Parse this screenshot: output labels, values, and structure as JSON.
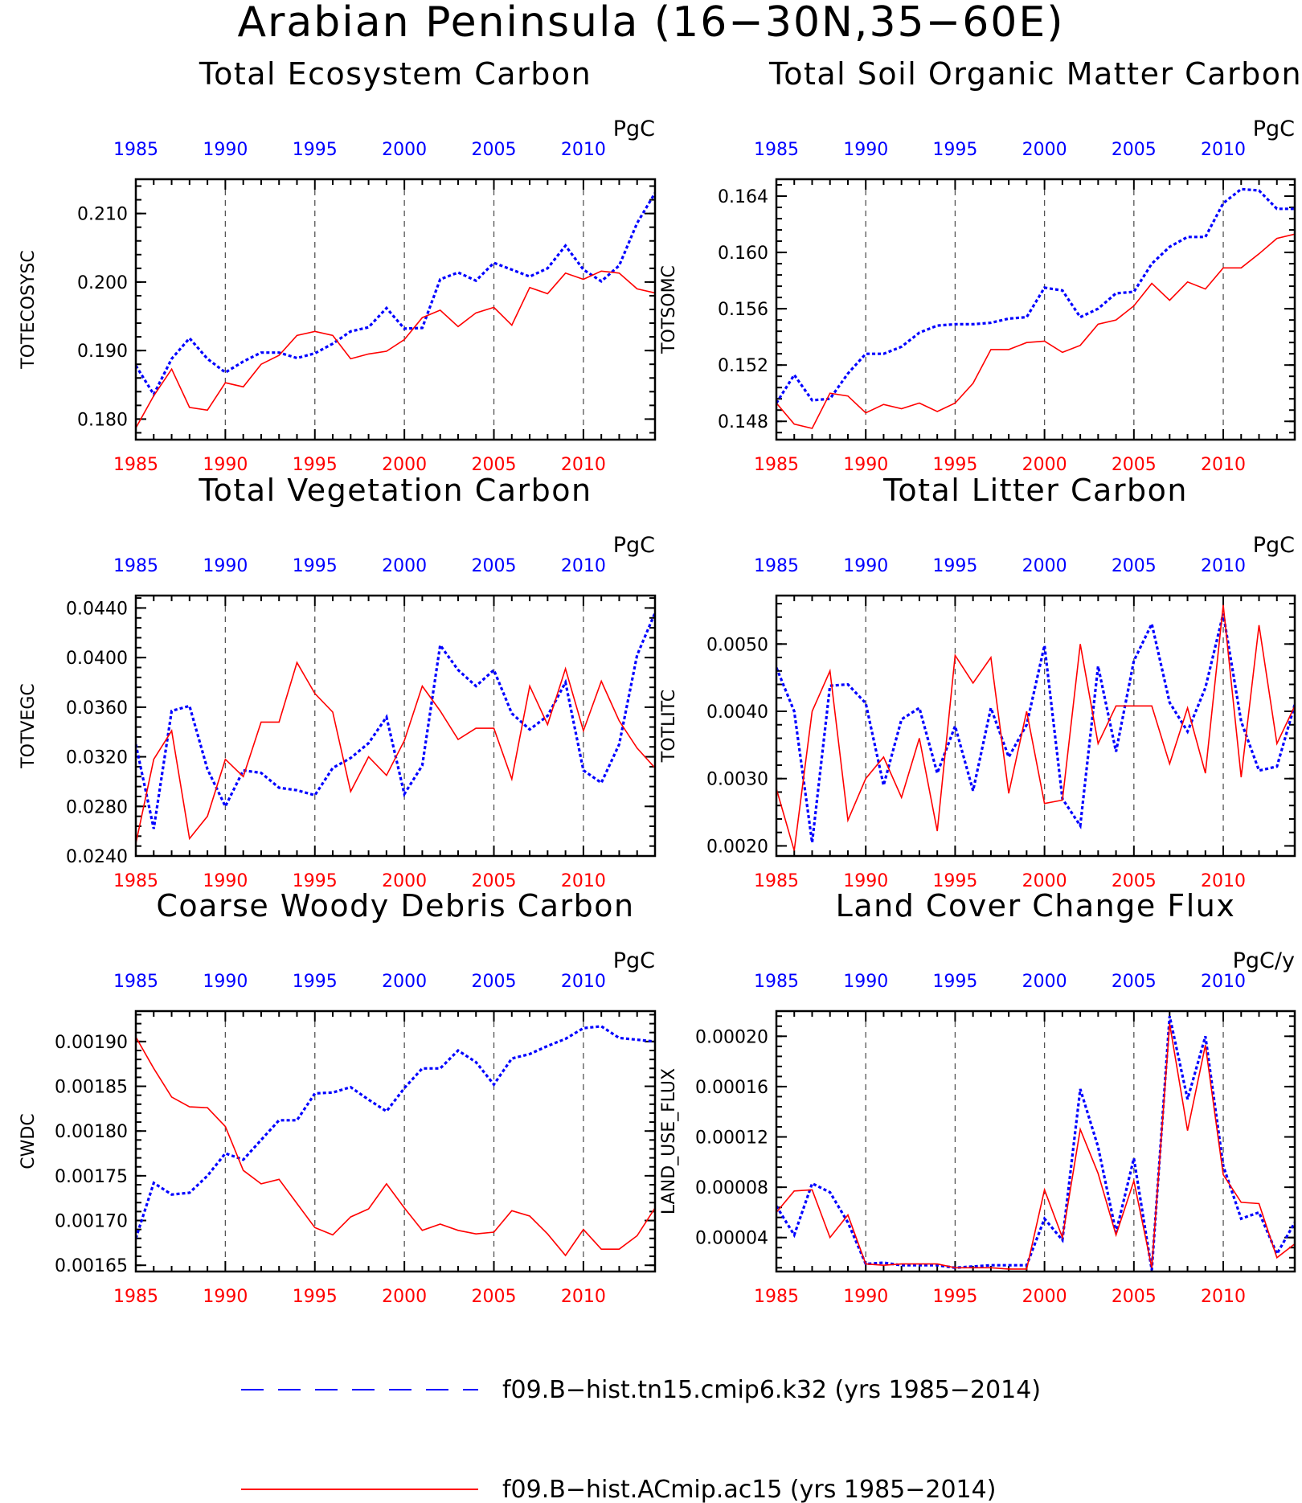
{
  "figure": {
    "title": "Arabian Peninsula (16−30N,35−60E)"
  },
  "colors": {
    "case1": "#0000ff",
    "case2": "#ff0000",
    "axis": "#000000",
    "grid": "#555555"
  },
  "legend": {
    "items": [
      {
        "label": "f09.B−hist.tn15.cmip6.k32 (yrs 1985−2014)",
        "color": "#0000ff",
        "style": "dashed"
      },
      {
        "label": "f09.B−hist.ACmip.ac15 (yrs 1985−2014)",
        "color": "#ff0000",
        "style": "solid"
      }
    ]
  },
  "chart_data": [
    {
      "type": "line",
      "title": "Total Ecosystem Carbon",
      "ylabel": "TOTECOSYSC",
      "units": "PgC",
      "x_top_color": "blue",
      "x_bottom_color": "red",
      "xlim": [
        1985,
        2014
      ],
      "xticks": [
        1985,
        1990,
        1995,
        2000,
        2005,
        2010
      ],
      "gridlines_x": [
        1990,
        1995,
        2000,
        2005,
        2010
      ],
      "ylim": [
        0.177,
        0.215
      ],
      "yticks": [
        "0.180",
        "0.190",
        "0.200",
        "0.210"
      ],
      "x": [
        1985,
        1986,
        1987,
        1988,
        1989,
        1990,
        1991,
        1992,
        1993,
        1994,
        1995,
        1996,
        1997,
        1998,
        1999,
        2000,
        2001,
        2002,
        2003,
        2004,
        2005,
        2006,
        2007,
        2008,
        2009,
        2010,
        2011,
        2012,
        2013,
        2014
      ],
      "series": [
        {
          "case": 1,
          "values": [
            0.1878,
            0.1836,
            0.1888,
            0.1918,
            0.1888,
            0.1868,
            0.1884,
            0.1897,
            0.1897,
            0.1889,
            0.1896,
            0.191,
            0.1928,
            0.1934,
            0.1962,
            0.1932,
            0.1933,
            0.2004,
            0.2014,
            0.2002,
            0.2028,
            0.2018,
            0.2008,
            0.202,
            0.2053,
            0.2018,
            0.2001,
            0.2024,
            0.2086,
            0.213
          ]
        },
        {
          "case": 2,
          "values": [
            0.1787,
            0.1834,
            0.1873,
            0.1817,
            0.1813,
            0.1853,
            0.1847,
            0.188,
            0.1893,
            0.1922,
            0.1928,
            0.1922,
            0.1888,
            0.1895,
            0.1899,
            0.1916,
            0.1948,
            0.1959,
            0.1935,
            0.1955,
            0.1963,
            0.1937,
            0.1992,
            0.1983,
            0.2013,
            0.2004,
            0.2016,
            0.2013,
            0.199,
            0.1984
          ]
        }
      ]
    },
    {
      "type": "line",
      "title": "Total Soil Organic Matter Carbon",
      "ylabel": "TOTSOMC",
      "units": "PgC",
      "x_top_color": "blue",
      "x_bottom_color": "red",
      "xlim": [
        1985,
        2014
      ],
      "xticks": [
        1985,
        1990,
        1995,
        2000,
        2005,
        2010
      ],
      "gridlines_x": [
        1990,
        1995,
        2000,
        2005,
        2010
      ],
      "ylim": [
        0.1467,
        0.1652
      ],
      "yticks": [
        "0.148",
        "0.152",
        "0.156",
        "0.160",
        "0.164"
      ],
      "x": [
        1985,
        1986,
        1987,
        1988,
        1989,
        1990,
        1991,
        1992,
        1993,
        1994,
        1995,
        1996,
        1997,
        1998,
        1999,
        2000,
        2001,
        2002,
        2003,
        2004,
        2005,
        2006,
        2007,
        2008,
        2009,
        2010,
        2011,
        2012,
        2013,
        2014
      ],
      "series": [
        {
          "case": 1,
          "values": [
            0.1493,
            0.1513,
            0.1495,
            0.1496,
            0.1514,
            0.1528,
            0.1528,
            0.1533,
            0.1543,
            0.1548,
            0.1549,
            0.1549,
            0.155,
            0.1553,
            0.1554,
            0.1575,
            0.1573,
            0.1554,
            0.156,
            0.1571,
            0.1572,
            0.1592,
            0.1604,
            0.1611,
            0.1611,
            0.1635,
            0.1645,
            0.1644,
            0.1631,
            0.1631
          ]
        },
        {
          "case": 2,
          "values": [
            0.1493,
            0.1478,
            0.1475,
            0.15,
            0.1498,
            0.1486,
            0.1492,
            0.1489,
            0.1493,
            0.1487,
            0.1493,
            0.1507,
            0.1531,
            0.1531,
            0.1536,
            0.1537,
            0.1529,
            0.1534,
            0.1549,
            0.1552,
            0.1562,
            0.1578,
            0.1566,
            0.1579,
            0.1574,
            0.1589,
            0.1589,
            0.1599,
            0.161,
            0.1613
          ]
        }
      ]
    },
    {
      "type": "line",
      "title": "Total Vegetation Carbon",
      "ylabel": "TOTVEGC",
      "units": "PgC",
      "x_top_color": "blue",
      "x_bottom_color": "red",
      "xlim": [
        1985,
        2014
      ],
      "xticks": [
        1985,
        1990,
        1995,
        2000,
        2005,
        2010
      ],
      "gridlines_x": [
        1990,
        1995,
        2000,
        2005,
        2010
      ],
      "ylim": [
        0.024,
        0.045
      ],
      "yticks": [
        "0.0240",
        "0.0280",
        "0.0320",
        "0.0360",
        "0.0400",
        "0.0440"
      ],
      "x": [
        1985,
        1986,
        1987,
        1988,
        1989,
        1990,
        1991,
        1992,
        1993,
        1994,
        1995,
        1996,
        1997,
        1998,
        1999,
        2000,
        2001,
        2002,
        2003,
        2004,
        2005,
        2006,
        2007,
        2008,
        2009,
        2010,
        2011,
        2012,
        2013,
        2014
      ],
      "series": [
        {
          "case": 1,
          "values": [
            0.033,
            0.0262,
            0.0357,
            0.0361,
            0.031,
            0.028,
            0.0309,
            0.0307,
            0.0295,
            0.0293,
            0.0289,
            0.0311,
            0.0319,
            0.0331,
            0.0352,
            0.029,
            0.0313,
            0.041,
            0.039,
            0.0377,
            0.039,
            0.0355,
            0.0342,
            0.0353,
            0.038,
            0.0309,
            0.0299,
            0.033,
            0.0402,
            0.0436
          ]
        },
        {
          "case": 2,
          "values": [
            0.025,
            0.0318,
            0.0341,
            0.0254,
            0.0272,
            0.0318,
            0.0304,
            0.0348,
            0.0348,
            0.0396,
            0.0371,
            0.0356,
            0.0292,
            0.032,
            0.0305,
            0.0333,
            0.0377,
            0.0357,
            0.0334,
            0.0343,
            0.0343,
            0.0302,
            0.0377,
            0.0346,
            0.0391,
            0.0341,
            0.0381,
            0.0349,
            0.0327,
            0.0311
          ]
        }
      ]
    },
    {
      "type": "line",
      "title": "Total Litter Carbon",
      "ylabel": "TOTLITC",
      "units": "PgC",
      "x_top_color": "blue",
      "x_bottom_color": "red",
      "xlim": [
        1985,
        2014
      ],
      "xticks": [
        1985,
        1990,
        1995,
        2000,
        2005,
        2010
      ],
      "gridlines_x": [
        1990,
        1995,
        2000,
        2005,
        2010
      ],
      "ylim": [
        0.00185,
        0.00572
      ],
      "yticks": [
        "0.0020",
        "0.0030",
        "0.0040",
        "0.0050"
      ],
      "x": [
        1985,
        1986,
        1987,
        1988,
        1989,
        1990,
        1991,
        1992,
        1993,
        1994,
        1995,
        1996,
        1997,
        1998,
        1999,
        2000,
        2001,
        2002,
        2003,
        2004,
        2005,
        2006,
        2007,
        2008,
        2009,
        2010,
        2011,
        2012,
        2013,
        2014
      ],
      "series": [
        {
          "case": 1,
          "values": [
            0.00465,
            0.004,
            0.00205,
            0.00438,
            0.0044,
            0.00412,
            0.0029,
            0.00388,
            0.00405,
            0.00308,
            0.00378,
            0.00282,
            0.00405,
            0.00332,
            0.0038,
            0.00498,
            0.0027,
            0.0023,
            0.00467,
            0.0034,
            0.00475,
            0.0053,
            0.00413,
            0.0037,
            0.00435,
            0.00545,
            0.00385,
            0.00312,
            0.00318,
            0.0041
          ]
        },
        {
          "case": 2,
          "values": [
            0.00285,
            0.00193,
            0.004,
            0.0046,
            0.00238,
            0.003,
            0.00332,
            0.00272,
            0.0036,
            0.00222,
            0.00483,
            0.00442,
            0.0048,
            0.00278,
            0.004,
            0.00263,
            0.00268,
            0.005,
            0.00352,
            0.00408,
            0.00408,
            0.00408,
            0.00322,
            0.00405,
            0.00308,
            0.00558,
            0.00302,
            0.00528,
            0.00352,
            0.00408
          ]
        }
      ]
    },
    {
      "type": "line",
      "title": "Coarse Woody Debris Carbon",
      "ylabel": "CWDC",
      "units": "PgC",
      "x_top_color": "blue",
      "x_bottom_color": "red",
      "xlim": [
        1985,
        2014
      ],
      "xticks": [
        1985,
        1990,
        1995,
        2000,
        2005,
        2010
      ],
      "gridlines_x": [
        1990,
        1995,
        2000,
        2005,
        2010
      ],
      "ylim": [
        0.001643,
        0.001934
      ],
      "yticks": [
        "0.00165",
        "0.00170",
        "0.00175",
        "0.00180",
        "0.00185",
        "0.00190"
      ],
      "x": [
        1985,
        1986,
        1987,
        1988,
        1989,
        1990,
        1991,
        1992,
        1993,
        1994,
        1995,
        1996,
        1997,
        1998,
        1999,
        2000,
        2001,
        2002,
        2003,
        2004,
        2005,
        2006,
        2007,
        2008,
        2009,
        2010,
        2011,
        2012,
        2013,
        2014
      ],
      "series": [
        {
          "case": 1,
          "values": [
            0.00168,
            0.001742,
            0.001729,
            0.001731,
            0.00175,
            0.001775,
            0.001768,
            0.00179,
            0.001812,
            0.001812,
            0.001842,
            0.001843,
            0.001849,
            0.001835,
            0.001822,
            0.001848,
            0.00187,
            0.00187,
            0.00189,
            0.001877,
            0.001852,
            0.001881,
            0.001886,
            0.001895,
            0.001903,
            0.001915,
            0.001917,
            0.001904,
            0.001902,
            0.0019
          ]
        },
        {
          "case": 2,
          "values": [
            0.001905,
            0.00187,
            0.001838,
            0.001827,
            0.001826,
            0.001805,
            0.001756,
            0.001741,
            0.001746,
            0.001719,
            0.001692,
            0.001684,
            0.001704,
            0.001713,
            0.001741,
            0.001714,
            0.001689,
            0.001696,
            0.001689,
            0.001685,
            0.001687,
            0.001711,
            0.001705,
            0.001685,
            0.001661,
            0.00169,
            0.001668,
            0.001668,
            0.001683,
            0.001714
          ]
        }
      ]
    },
    {
      "type": "line",
      "title": "Land Cover Change Flux",
      "ylabel": "LAND_USE_FLUX",
      "units": "PgC/y",
      "x_top_color": "blue",
      "x_bottom_color": "red",
      "xlim": [
        1985,
        2014
      ],
      "xticks": [
        1985,
        1990,
        1995,
        2000,
        2005,
        2010
      ],
      "gridlines_x": [
        1990,
        1995,
        2000,
        2005,
        2010
      ],
      "ylim": [
        1.3e-05,
        0.00022
      ],
      "yticks": [
        "0.00004",
        "0.00008",
        "0.00012",
        "0.00016",
        "0.00020"
      ],
      "x": [
        1985,
        1986,
        1987,
        1988,
        1989,
        1990,
        1991,
        1992,
        1993,
        1994,
        1995,
        1996,
        1997,
        1998,
        1999,
        2000,
        2001,
        2002,
        2003,
        2004,
        2005,
        2006,
        2007,
        2008,
        2009,
        2010,
        2011,
        2012,
        2013,
        2014
      ],
      "series": [
        {
          "case": 1,
          "values": [
            6.5e-05,
            4.2e-05,
            8.3e-05,
            7.6e-05,
            5.2e-05,
            1.9e-05,
            2e-05,
            1.8e-05,
            1.8e-05,
            1.8e-05,
            1.6e-05,
            1.7e-05,
            1.8e-05,
            1.8e-05,
            1.8e-05,
            5.5e-05,
            3.8e-05,
            0.000158,
            0.000112,
            4.4e-05,
            0.000103,
            1.4e-05,
            0.000216,
            0.00015,
            0.0002,
            9.7e-05,
            5.5e-05,
            6e-05,
            2.7e-05,
            5.2e-05
          ]
        },
        {
          "case": 2,
          "values": [
            6e-05,
            7.7e-05,
            7.8e-05,
            4e-05,
            5.8e-05,
            1.9e-05,
            1.8e-05,
            1.9e-05,
            1.9e-05,
            1.9e-05,
            1.6e-05,
            1.6e-05,
            1.6e-05,
            1.5e-05,
            1.5e-05,
            7.8e-05,
            4e-05,
            0.000126,
            9.1e-05,
            4.2e-05,
            8.5e-05,
            1.6e-05,
            0.00021,
            0.000125,
            0.000193,
            9e-05,
            6.8e-05,
            6.7e-05,
            2.4e-05,
            3.5e-05
          ]
        }
      ]
    }
  ]
}
